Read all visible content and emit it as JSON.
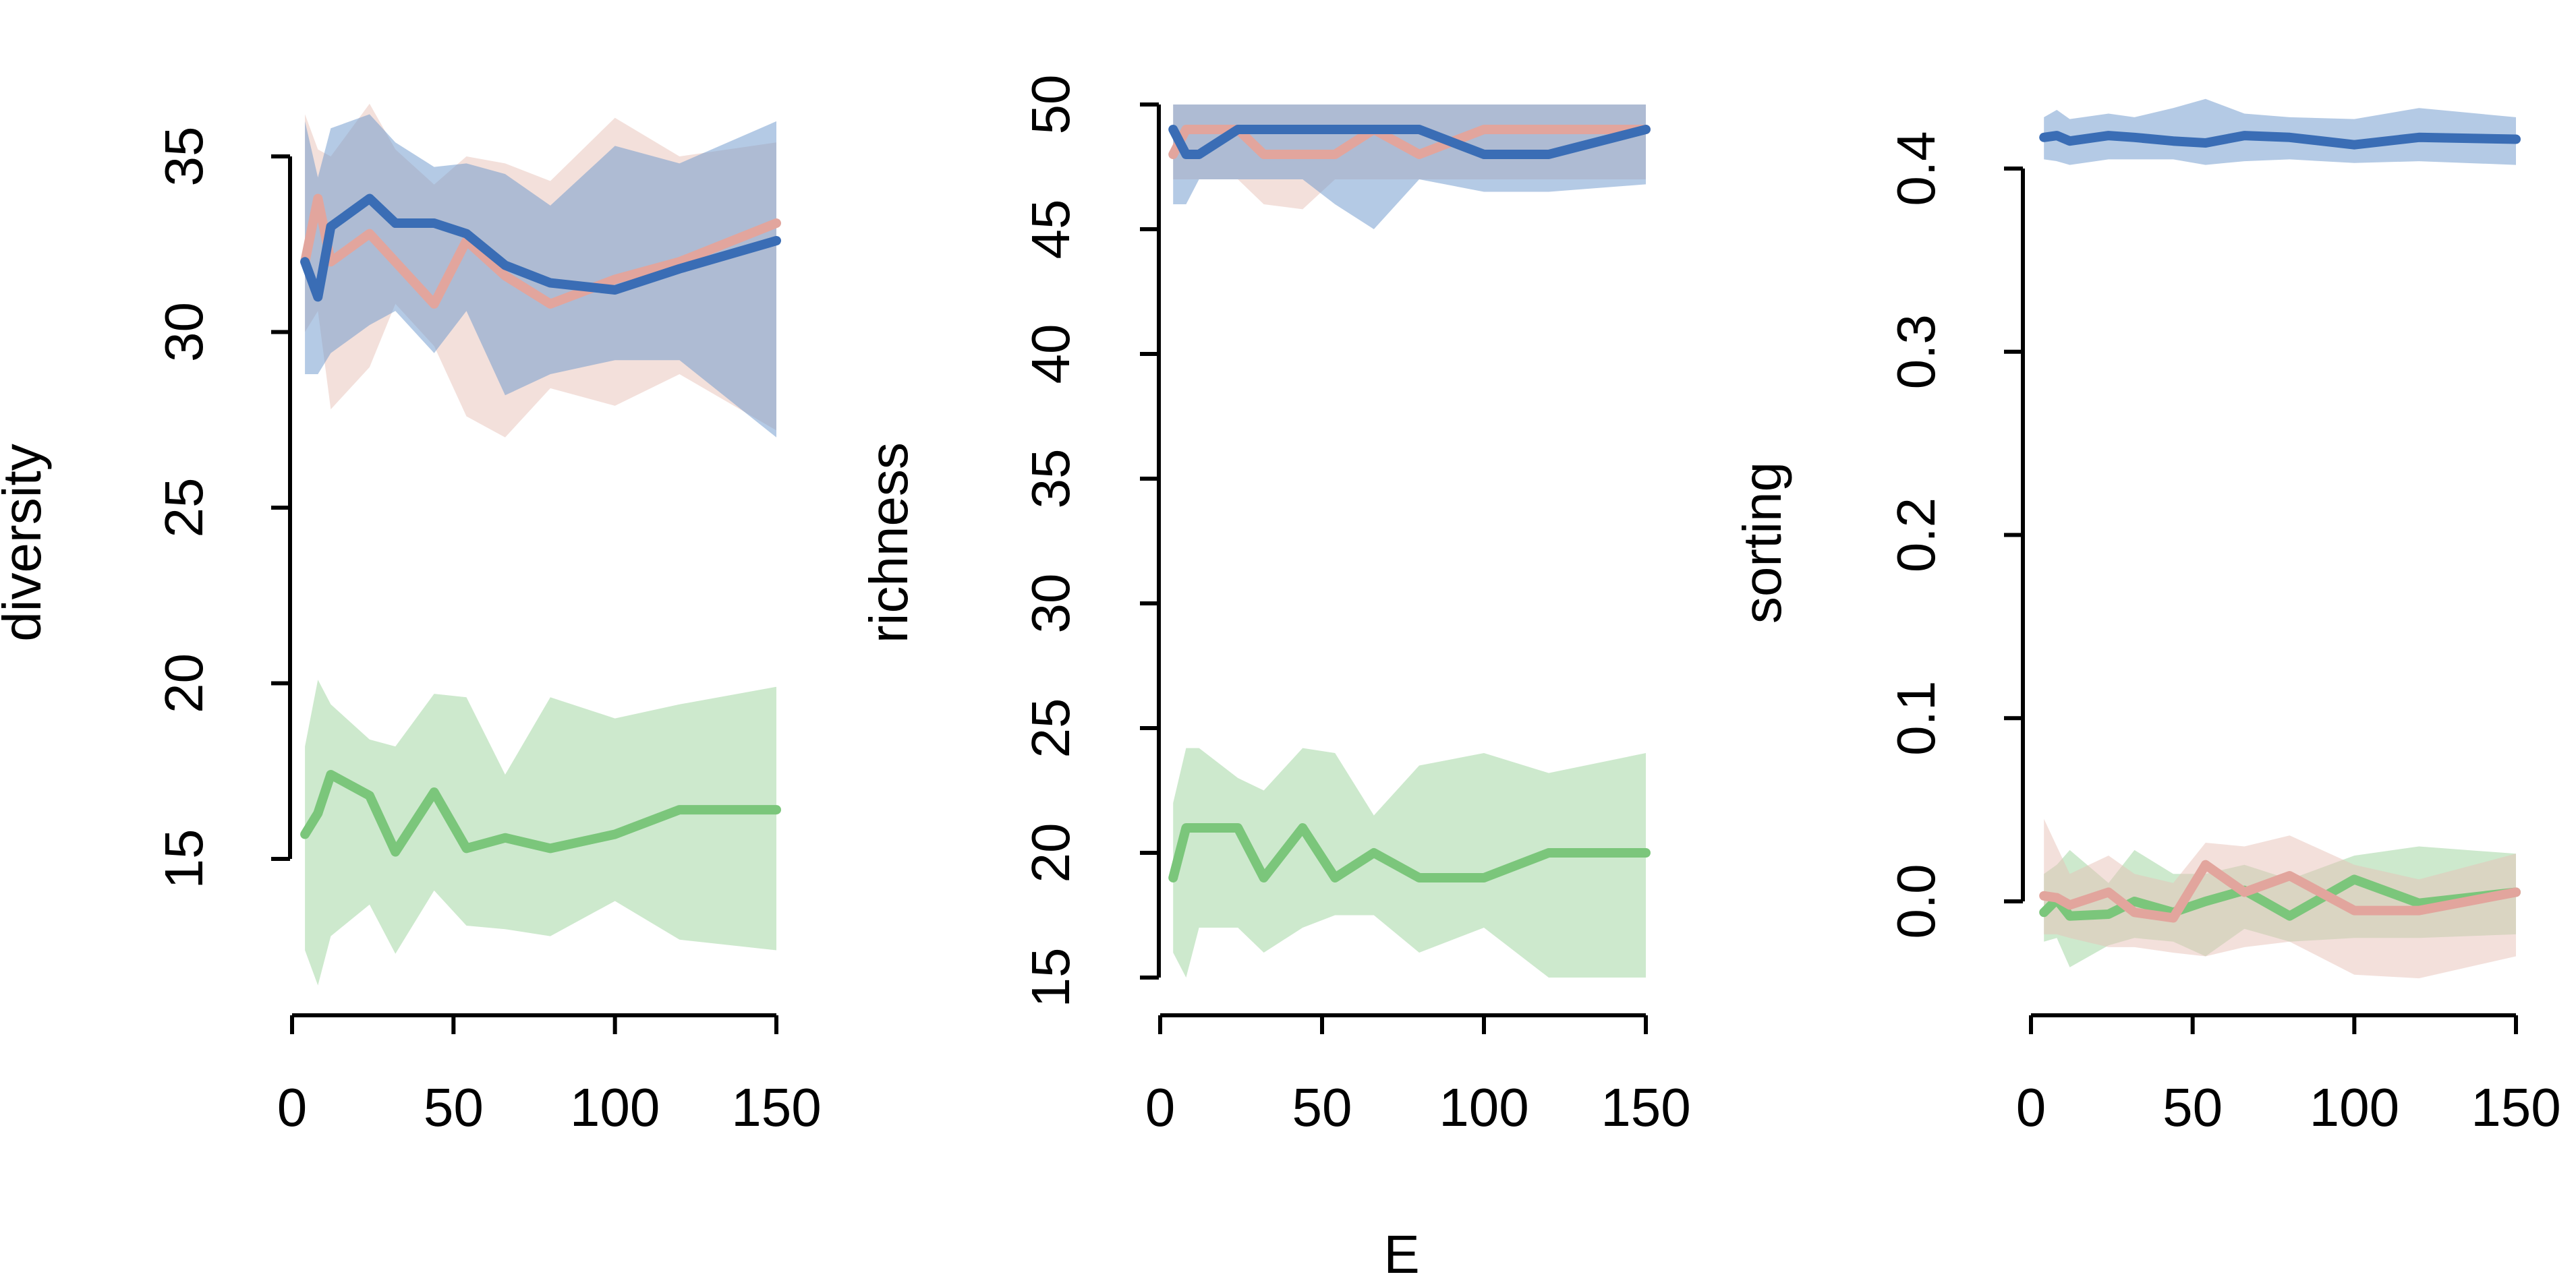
{
  "figure": {
    "shared_xlabel": "E",
    "colors": {
      "blue": "#3a6db5",
      "green": "#7bc67b",
      "pink": "#e2a59d",
      "band_blue": "#6a95cc",
      "band_green": "#9bd39b",
      "band_pink": "#e8c2b8"
    }
  },
  "chart_data": [
    {
      "type": "line",
      "ylabel": "diversity",
      "xlabel": "",
      "xlim": [
        0,
        150
      ],
      "ylim": [
        15,
        35
      ],
      "xticks": [
        0,
        50,
        100,
        150
      ],
      "yticks": [
        15,
        20,
        25,
        30,
        35
      ],
      "band_opacity": 0.5,
      "series": [
        {
          "color": "#e2a59d",
          "band_color": "#e8c2b8",
          "x": [
            4,
            8,
            12,
            24,
            32,
            44,
            54,
            66,
            80,
            100,
            120,
            150
          ],
          "y": [
            32.0,
            33.8,
            32.0,
            32.8,
            32.0,
            30.8,
            32.6,
            31.6,
            30.8,
            31.5,
            32.0,
            33.1
          ],
          "lower": [
            30.0,
            30.6,
            27.8,
            29.0,
            30.8,
            29.6,
            27.6,
            27.0,
            28.4,
            27.9,
            28.8,
            27.2
          ],
          "upper": [
            36.2,
            35.2,
            35.0,
            36.5,
            35.2,
            34.2,
            35.0,
            34.8,
            34.3,
            36.1,
            35.0,
            35.4
          ]
        },
        {
          "color": "#3a6db5",
          "band_color": "#6a95cc",
          "x": [
            4,
            8,
            12,
            24,
            32,
            44,
            54,
            66,
            80,
            100,
            120,
            150
          ],
          "y": [
            32.0,
            31.0,
            33.0,
            33.8,
            33.1,
            33.1,
            32.8,
            31.9,
            31.4,
            31.2,
            31.8,
            32.6
          ],
          "lower": [
            28.8,
            28.8,
            29.4,
            30.2,
            30.6,
            29.4,
            30.6,
            28.2,
            28.8,
            29.2,
            29.2,
            27.0
          ],
          "upper": [
            36.0,
            34.4,
            35.8,
            36.2,
            35.4,
            34.7,
            34.8,
            34.5,
            33.6,
            35.3,
            34.8,
            36.0
          ]
        },
        {
          "color": "#7bc67b",
          "band_color": "#9bd39b",
          "x": [
            4,
            8,
            12,
            24,
            32,
            44,
            54,
            66,
            80,
            100,
            120,
            150
          ],
          "y": [
            15.7,
            16.3,
            17.4,
            16.8,
            15.2,
            16.9,
            15.3,
            15.6,
            15.3,
            15.7,
            16.4,
            16.4
          ],
          "lower": [
            12.4,
            11.4,
            12.8,
            13.7,
            12.3,
            14.1,
            13.1,
            13.0,
            12.8,
            13.8,
            12.7,
            12.4
          ],
          "upper": [
            18.2,
            20.1,
            19.4,
            18.4,
            18.2,
            19.7,
            19.6,
            17.4,
            19.6,
            19.0,
            19.4,
            19.9
          ]
        }
      ]
    },
    {
      "type": "line",
      "ylabel": "richness",
      "xlabel": "",
      "xlim": [
        0,
        150
      ],
      "ylim": [
        15,
        50
      ],
      "xticks": [
        0,
        50,
        100,
        150
      ],
      "yticks": [
        15,
        20,
        25,
        30,
        35,
        40,
        45,
        50
      ],
      "band_opacity": 0.5,
      "series": [
        {
          "color": "#e2a59d",
          "band_color": "#e8c2b8",
          "x": [
            4,
            8,
            12,
            24,
            32,
            44,
            54,
            66,
            80,
            100,
            120,
            150
          ],
          "y": [
            48.0,
            49.0,
            49.0,
            49.0,
            48.0,
            48.0,
            48.0,
            49.0,
            48.0,
            49.0,
            49.0,
            49.0
          ],
          "lower": [
            47.0,
            47.0,
            47.0,
            47.0,
            46.0,
            45.8,
            47.0,
            47.0,
            47.0,
            47.0,
            47.0,
            47.0
          ],
          "upper": [
            50.0,
            50.0,
            50.0,
            50.0,
            50.0,
            50.0,
            50.0,
            50.0,
            50.0,
            50.0,
            50.0,
            50.0
          ]
        },
        {
          "color": "#3a6db5",
          "band_color": "#6a95cc",
          "x": [
            4,
            8,
            12,
            24,
            32,
            44,
            54,
            66,
            80,
            100,
            120,
            150
          ],
          "y": [
            49.0,
            48.0,
            48.0,
            49.0,
            49.0,
            49.0,
            49.0,
            49.0,
            49.0,
            48.0,
            48.0,
            49.0
          ],
          "lower": [
            46.0,
            46.0,
            47.0,
            47.0,
            47.0,
            47.0,
            46.0,
            45.0,
            47.0,
            46.5,
            46.5,
            46.8
          ],
          "upper": [
            50.0,
            50.0,
            50.0,
            50.0,
            50.0,
            50.0,
            50.0,
            50.0,
            50.0,
            50.0,
            50.0,
            50.0
          ]
        },
        {
          "color": "#7bc67b",
          "band_color": "#9bd39b",
          "x": [
            4,
            8,
            12,
            24,
            32,
            44,
            54,
            66,
            80,
            100,
            120,
            150
          ],
          "y": [
            19.0,
            21.0,
            21.0,
            21.0,
            19.0,
            21.0,
            19.0,
            20.0,
            19.0,
            19.0,
            20.0,
            20.0
          ],
          "lower": [
            16.0,
            15.0,
            17.0,
            17.0,
            16.0,
            17.0,
            17.5,
            17.5,
            16.0,
            17.0,
            15.0,
            15.0
          ],
          "upper": [
            22.0,
            24.2,
            24.2,
            23.0,
            22.5,
            24.2,
            24.0,
            21.5,
            23.5,
            24.0,
            23.2,
            24.0
          ]
        }
      ]
    },
    {
      "type": "line",
      "ylabel": "sorting",
      "xlabel": "",
      "xlim": [
        0,
        150
      ],
      "ylim": [
        0.0,
        0.4
      ],
      "xticks": [
        0,
        50,
        100,
        150
      ],
      "yticks": [
        0.0,
        0.1,
        0.2,
        0.3,
        0.4
      ],
      "ytick_labels": [
        "0.0",
        "0.1",
        "0.2",
        "0.3",
        "0.4"
      ],
      "band_opacity": 0.5,
      "series": [
        {
          "color": "#3a6db5",
          "band_color": "#6a95cc",
          "x": [
            4,
            8,
            12,
            24,
            32,
            44,
            54,
            66,
            80,
            100,
            120,
            150
          ],
          "y": [
            0.417,
            0.418,
            0.415,
            0.418,
            0.417,
            0.415,
            0.414,
            0.418,
            0.417,
            0.413,
            0.417,
            0.416
          ],
          "lower": [
            0.405,
            0.404,
            0.402,
            0.405,
            0.405,
            0.405,
            0.402,
            0.404,
            0.405,
            0.403,
            0.404,
            0.402
          ],
          "upper": [
            0.428,
            0.432,
            0.427,
            0.43,
            0.428,
            0.433,
            0.438,
            0.43,
            0.428,
            0.427,
            0.433,
            0.428
          ]
        },
        {
          "color": "#7bc67b",
          "band_color": "#9bd39b",
          "x": [
            4,
            8,
            12,
            24,
            32,
            44,
            54,
            66,
            80,
            100,
            120,
            150
          ],
          "y": [
            -0.006,
            0.001,
            -0.008,
            -0.007,
            0.0,
            -0.006,
            0.0,
            0.006,
            -0.008,
            0.012,
            -0.001,
            0.005
          ],
          "lower": [
            -0.022,
            -0.02,
            -0.036,
            -0.024,
            -0.02,
            -0.022,
            -0.03,
            -0.015,
            -0.022,
            -0.02,
            -0.02,
            -0.018
          ],
          "upper": [
            0.015,
            0.02,
            0.028,
            0.01,
            0.028,
            0.015,
            0.015,
            0.02,
            0.012,
            0.025,
            0.03,
            0.026
          ]
        },
        {
          "color": "#e2a59d",
          "band_color": "#e8c2b8",
          "x": [
            4,
            8,
            12,
            24,
            32,
            44,
            54,
            66,
            80,
            100,
            120,
            150
          ],
          "y": [
            0.003,
            0.002,
            -0.002,
            0.005,
            -0.006,
            -0.009,
            0.02,
            0.005,
            0.014,
            -0.005,
            -0.005,
            0.005
          ],
          "lower": [
            -0.018,
            -0.018,
            -0.02,
            -0.025,
            -0.025,
            -0.028,
            -0.03,
            -0.025,
            -0.022,
            -0.04,
            -0.042,
            -0.03
          ],
          "upper": [
            0.045,
            0.03,
            0.015,
            0.025,
            0.015,
            0.01,
            0.032,
            0.03,
            0.036,
            0.02,
            0.012,
            0.026
          ]
        }
      ]
    }
  ]
}
